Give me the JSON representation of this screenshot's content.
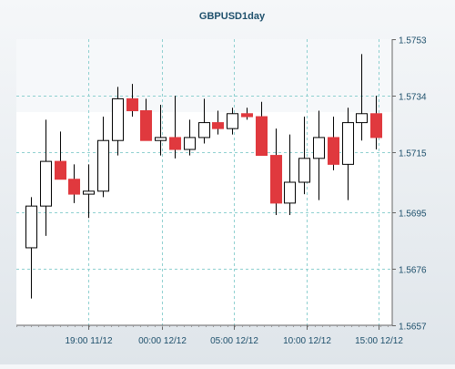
{
  "chart_data": {
    "type": "candlestick",
    "title": "GBPUSD1day",
    "y_ticks": [
      "1.5753",
      "1.5734",
      "1.5715",
      "1.5695",
      "1.5676",
      "1.5657"
    ],
    "ylim": [
      1.5657,
      1.5753
    ],
    "x_ticks": [
      "19:00 11/12",
      "00:00 12/12",
      "05:00 12/12",
      "10:00 12/12",
      "15:00 12/12"
    ],
    "grid": true,
    "colors": {
      "up": "#ffffff",
      "down": "#e0393e",
      "outline": "#000000",
      "grid": "#8fd0d0",
      "text": "#1d4f6b"
    },
    "candles": [
      {
        "open": 1.5683,
        "high": 1.57,
        "low": 1.5666,
        "close": 1.5697
      },
      {
        "open": 1.5697,
        "high": 1.5726,
        "low": 1.5687,
        "close": 1.5712
      },
      {
        "open": 1.5712,
        "high": 1.5722,
        "low": 1.5706,
        "close": 1.5706
      },
      {
        "open": 1.5706,
        "high": 1.5711,
        "low": 1.5698,
        "close": 1.5701
      },
      {
        "open": 1.5701,
        "high": 1.5711,
        "low": 1.5693,
        "close": 1.5702
      },
      {
        "open": 1.5702,
        "high": 1.5727,
        "low": 1.57,
        "close": 1.5719
      },
      {
        "open": 1.5719,
        "high": 1.5737,
        "low": 1.5714,
        "close": 1.5733
      },
      {
        "open": 1.5733,
        "high": 1.5738,
        "low": 1.5727,
        "close": 1.5729
      },
      {
        "open": 1.5729,
        "high": 1.5733,
        "low": 1.5719,
        "close": 1.5719
      },
      {
        "open": 1.5719,
        "high": 1.5731,
        "low": 1.5714,
        "close": 1.572
      },
      {
        "open": 1.572,
        "high": 1.5734,
        "low": 1.5713,
        "close": 1.5716
      },
      {
        "open": 1.5716,
        "high": 1.5726,
        "low": 1.5714,
        "close": 1.572
      },
      {
        "open": 1.572,
        "high": 1.5733,
        "low": 1.5718,
        "close": 1.5725
      },
      {
        "open": 1.5725,
        "high": 1.5729,
        "low": 1.5721,
        "close": 1.5723
      },
      {
        "open": 1.5723,
        "high": 1.573,
        "low": 1.5721,
        "close": 1.5728
      },
      {
        "open": 1.5728,
        "high": 1.573,
        "low": 1.5726,
        "close": 1.5727
      },
      {
        "open": 1.5727,
        "high": 1.5732,
        "low": 1.5714,
        "close": 1.5714
      },
      {
        "open": 1.5714,
        "high": 1.5723,
        "low": 1.5694,
        "close": 1.5698
      },
      {
        "open": 1.5698,
        "high": 1.5721,
        "low": 1.5694,
        "close": 1.5705
      },
      {
        "open": 1.5705,
        "high": 1.5727,
        "low": 1.5701,
        "close": 1.5713
      },
      {
        "open": 1.5713,
        "high": 1.5729,
        "low": 1.5699,
        "close": 1.572
      },
      {
        "open": 1.572,
        "high": 1.5727,
        "low": 1.5709,
        "close": 1.5711
      },
      {
        "open": 1.5711,
        "high": 1.573,
        "low": 1.5699,
        "close": 1.5725
      },
      {
        "open": 1.5725,
        "high": 1.5748,
        "low": 1.5719,
        "close": 1.5728
      },
      {
        "open": 1.5728,
        "high": 1.5734,
        "low": 1.5716,
        "close": 1.572
      }
    ]
  }
}
